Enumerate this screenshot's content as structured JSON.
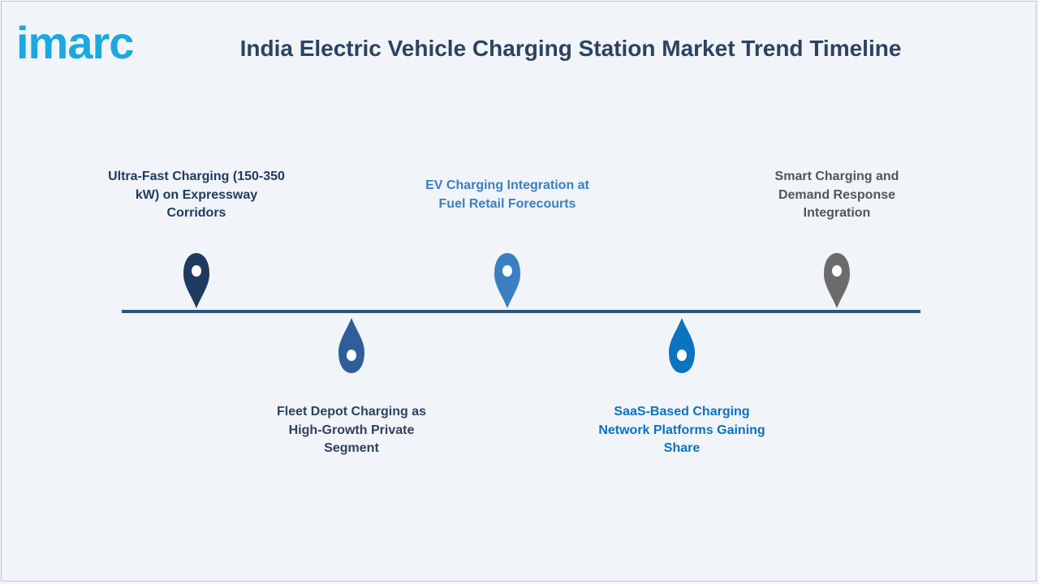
{
  "brand": {
    "logo_text": "imarc",
    "logo_color": "#1ba8e0"
  },
  "title": "India Electric Vehicle Charging Station Market Trend Timeline",
  "timeline": {
    "line_color": "#2f5678",
    "items": [
      {
        "label": "Ultra-Fast Charging (150-350 kW) on Expressway Corridors",
        "color": "#1f3a5f",
        "pin_icon": "map-pin-down"
      },
      {
        "label": "Fleet Depot Charging as High-Growth Private Segment",
        "color": "#2f5e9a",
        "pin_icon": "drop-pin-up"
      },
      {
        "label": "EV Charging Integration at Fuel Retail Forecourts",
        "color": "#3a7fc1",
        "pin_icon": "map-pin-down"
      },
      {
        "label": "SaaS-Based Charging Network Platforms Gaining Share",
        "color": "#0b73c0",
        "pin_icon": "drop-pin-up"
      },
      {
        "label": "Smart Charging and Demand Response Integration",
        "color": "#6b6b6b",
        "pin_icon": "map-pin-down"
      }
    ]
  }
}
